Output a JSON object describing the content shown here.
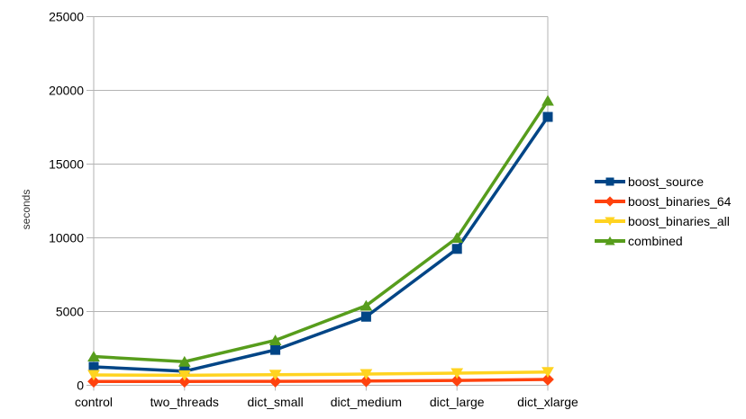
{
  "chart_data": {
    "type": "line",
    "title": "",
    "xlabel": "",
    "ylabel": "seconds",
    "ylim": [
      0,
      25000
    ],
    "yticks": [
      0,
      5000,
      10000,
      15000,
      20000,
      25000
    ],
    "grid": "horizontal",
    "legend_position": "right",
    "categories": [
      "control",
      "two_threads",
      "dict_small",
      "dict_medium",
      "dict_large",
      "dict_xlarge"
    ],
    "series": [
      {
        "name": "boost_source",
        "color": "#004586",
        "marker": "square",
        "values": [
          1250,
          950,
          2400,
          4650,
          9250,
          18200
        ]
      },
      {
        "name": "boost_binaries_64",
        "color": "#ff420e",
        "marker": "diamond",
        "values": [
          260,
          260,
          270,
          290,
          330,
          400
        ]
      },
      {
        "name": "boost_binaries_all",
        "color": "#ffd320",
        "marker": "triangle-down",
        "values": [
          700,
          680,
          720,
          760,
          820,
          900
        ]
      },
      {
        "name": "combined",
        "color": "#579d1c",
        "marker": "triangle-up",
        "values": [
          1950,
          1600,
          3050,
          5400,
          10000,
          19300
        ]
      }
    ],
    "colors": {
      "grid": "#b3b3b3",
      "axis": "#b3b3b3",
      "text": "#000000",
      "background": "#ffffff"
    }
  }
}
